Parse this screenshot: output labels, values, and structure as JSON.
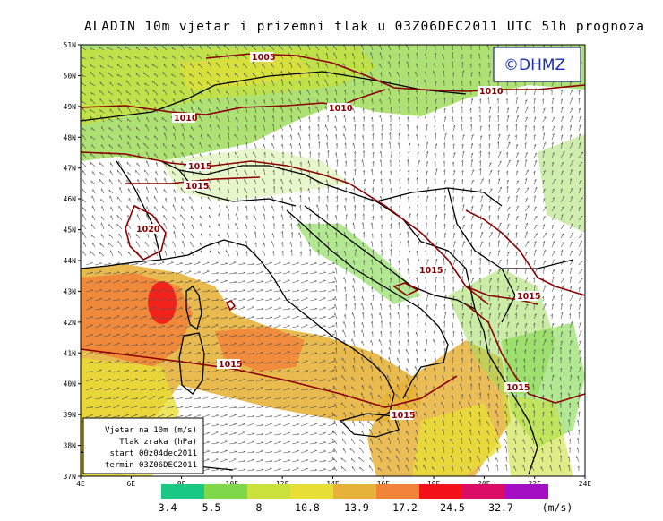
{
  "title": "ALADIN 10m vjetar i prizemni tlak u 03Z06DEC2011 UTC 51h prognoza",
  "logo_text": "©DHMZ",
  "legend": {
    "line1": "Vjetar na 10m (m/s)",
    "line2": "Tlak zraka (hPa)",
    "line3": "start 00z04dec2011",
    "line4": "termin 03Z06DEC2011"
  },
  "lat_ticks": [
    "51N",
    "50N",
    "49N",
    "48N",
    "47N",
    "46N",
    "45N",
    "44N",
    "43N",
    "42N",
    "41N",
    "40N",
    "39N",
    "38N",
    "37N"
  ],
  "lon_ticks": [
    "4E",
    "6E",
    "8E",
    "10E",
    "12E",
    "14E",
    "16E",
    "18E",
    "20E",
    "22E",
    "24E"
  ],
  "isobar_labels": [
    {
      "text": "1005"
    },
    {
      "text": "1010"
    },
    {
      "text": "1010"
    },
    {
      "text": "1010"
    },
    {
      "text": "1015"
    },
    {
      "text": "1015"
    },
    {
      "text": "1020"
    },
    {
      "text": "1015"
    },
    {
      "text": "1015"
    },
    {
      "text": "1015"
    },
    {
      "text": "1015"
    },
    {
      "text": "1015"
    }
  ],
  "colorbar": {
    "colors": [
      "#19c983",
      "#7fd84a",
      "#c9e13a",
      "#e8df36",
      "#e7b23a",
      "#f2843a",
      "#f31217",
      "#db0c65",
      "#a40fc3"
    ],
    "labels": [
      "3.4",
      "5.5",
      "8",
      "10.8",
      "13.9",
      "17.2",
      "24.5",
      "32.7"
    ],
    "unit": "(m/s)"
  },
  "colors": {
    "isobar": "#8b0000",
    "coast": "#000000",
    "arrow": "#555555"
  }
}
